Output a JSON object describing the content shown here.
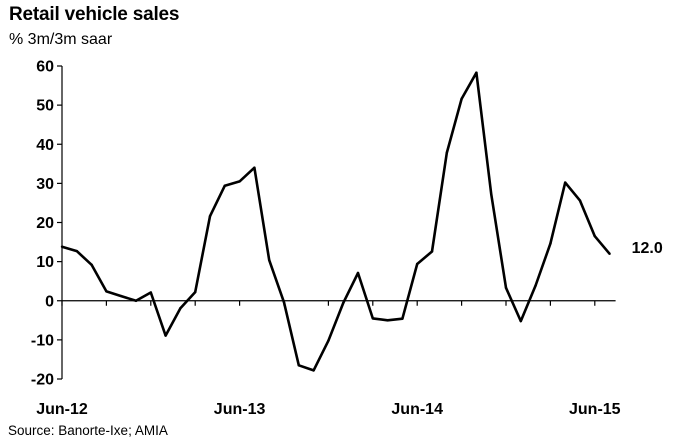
{
  "chart_data": {
    "type": "line",
    "title": "Retail vehicle sales",
    "subtitle": "% 3m/3m saar",
    "source": "Source: Banorte-Ixe; AMIA",
    "ylim": [
      -20,
      60
    ],
    "yticks": [
      -20,
      -10,
      0,
      10,
      20,
      30,
      40,
      50,
      60
    ],
    "xtick_labels": [
      {
        "label": "Jun-12",
        "index": 0
      },
      {
        "label": "Jun-13",
        "index": 12
      },
      {
        "label": "Jun-14",
        "index": 24
      },
      {
        "label": "Jun-15",
        "index": 36
      }
    ],
    "grid": false,
    "last_value_label": "12.0",
    "series": [
      {
        "color": "#000000",
        "values": [
          13.8,
          12.7,
          9.2,
          2.4,
          1.2,
          0.0,
          2.1,
          -8.9,
          -1.9,
          2.2,
          21.6,
          29.4,
          30.5,
          34.0,
          10.4,
          -0.4,
          -16.5,
          -17.8,
          -10.2,
          -0.6,
          7.1,
          -4.5,
          -5.0,
          -4.6,
          9.4,
          12.6,
          37.8,
          51.6,
          58.3,
          27.3,
          3.3,
          -5.2,
          3.9,
          14.6,
          30.2,
          25.6,
          16.5,
          12.0
        ]
      }
    ]
  }
}
